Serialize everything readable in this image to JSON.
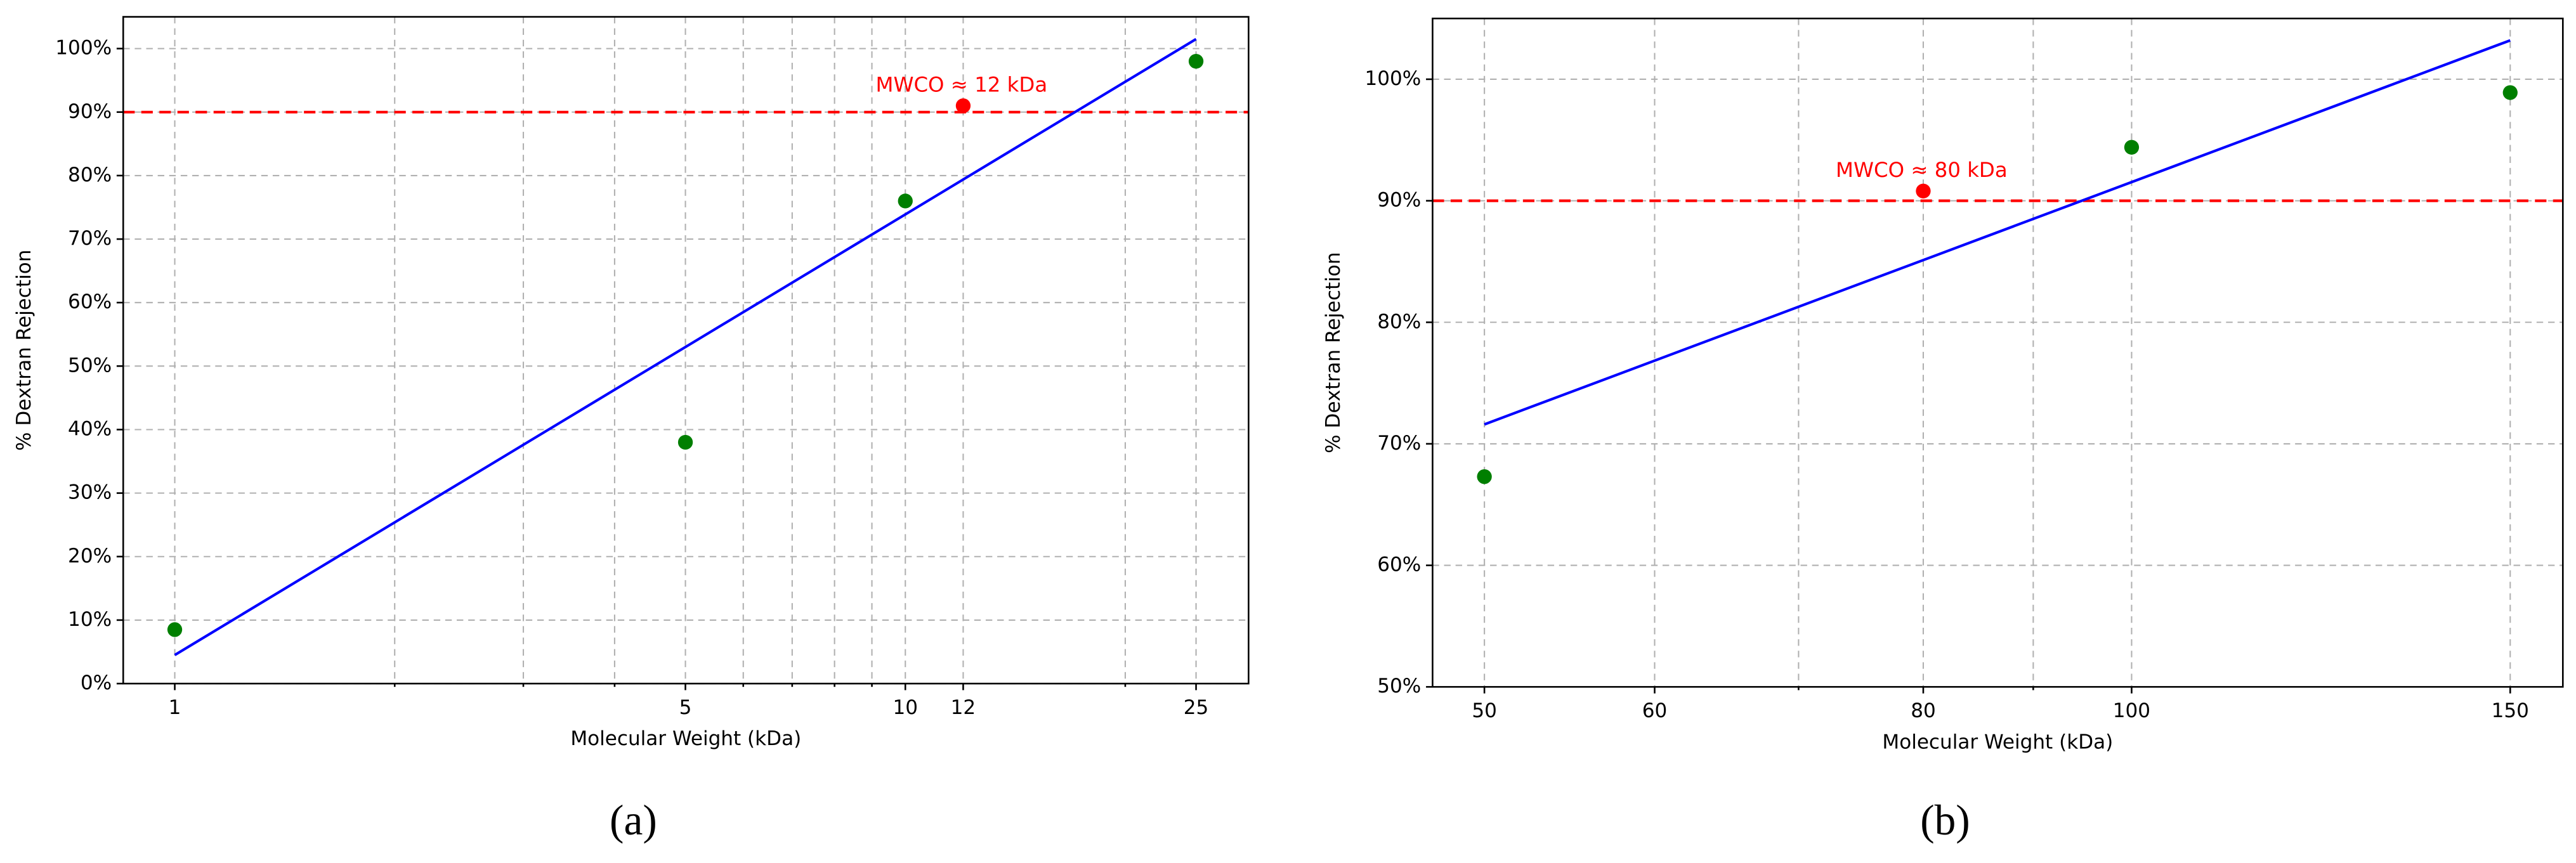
{
  "chart_data": [
    {
      "type": "scatter",
      "panel_label": "(a)",
      "xlabel": "Molecular Weight (kDa)",
      "ylabel": "% Dextran Rejection",
      "xscale": "log",
      "xlim": [
        0.85,
        29.5
      ],
      "ylim": [
        0,
        105
      ],
      "xticks": [
        1,
        5,
        10,
        12,
        25
      ],
      "xminor": [
        2,
        3,
        4,
        6,
        7,
        8,
        9,
        20
      ],
      "yticks": [
        {
          "value": 0,
          "label": "0%"
        },
        {
          "value": 10,
          "label": "10%"
        },
        {
          "value": 20,
          "label": "20%"
        },
        {
          "value": 30,
          "label": "30%"
        },
        {
          "value": 40,
          "label": "40%"
        },
        {
          "value": 50,
          "label": "50%"
        },
        {
          "value": 60,
          "label": "60%"
        },
        {
          "value": 70,
          "label": "70%"
        },
        {
          "value": 80,
          "label": "80%"
        },
        {
          "value": 90,
          "label": "90%"
        },
        {
          "value": 100,
          "label": "100%"
        }
      ],
      "grid": true,
      "series": [
        {
          "mode": "points",
          "color": "#007f00",
          "x": [
            1,
            5,
            10,
            25
          ],
          "values": [
            8.5,
            38,
            76,
            98
          ]
        },
        {
          "mode": "points",
          "color": "#ff0000",
          "x": [
            12
          ],
          "values": [
            91
          ]
        },
        {
          "mode": "line",
          "color": "#0000ff",
          "x": [
            1,
            25
          ],
          "values": [
            4.5,
            101.5
          ]
        }
      ],
      "hline": {
        "value": 90,
        "color": "#ff0000"
      },
      "annotation": "MWCO ≈ 12 kDa"
    },
    {
      "type": "scatter",
      "panel_label": "(b)",
      "xlabel": "Molecular Weight (kDa)",
      "ylabel": "% Dextran Rejection",
      "xscale": "log",
      "xlim": [
        47.3,
        158.7
      ],
      "ylim": [
        50,
        105
      ],
      "xticks": [
        50,
        60,
        80,
        100,
        150
      ],
      "xminor": [
        70,
        90
      ],
      "yticks": [
        {
          "value": 50,
          "label": "50%"
        },
        {
          "value": 60,
          "label": "60%"
        },
        {
          "value": 70,
          "label": "70%"
        },
        {
          "value": 80,
          "label": "80%"
        },
        {
          "value": 90,
          "label": "90%"
        },
        {
          "value": 100,
          "label": "100%"
        }
      ],
      "grid": true,
      "series": [
        {
          "mode": "points",
          "color": "#007f00",
          "x": [
            50,
            100,
            150
          ],
          "values": [
            67.3,
            94.4,
            98.9
          ]
        },
        {
          "mode": "points",
          "color": "#ff0000",
          "x": [
            80
          ],
          "values": [
            90.8
          ]
        },
        {
          "mode": "line",
          "color": "#0000ff",
          "x": [
            50,
            150
          ],
          "values": [
            71.6,
            103.2
          ]
        }
      ],
      "hline": {
        "value": 90,
        "color": "#ff0000"
      },
      "annotation": "MWCO ≈ 80 kDa"
    }
  ]
}
